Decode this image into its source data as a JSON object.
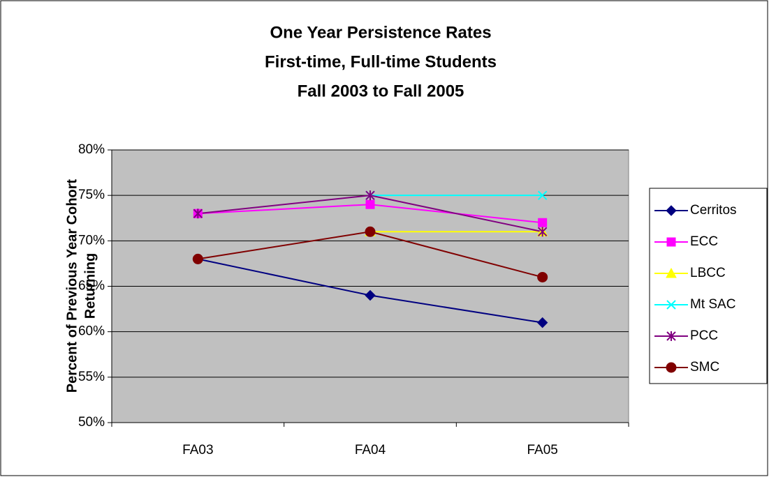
{
  "chart_data": {
    "type": "line",
    "title": [
      "One Year Persistence Rates",
      "First-time, Full-time Students",
      "Fall 2003 to Fall 2005"
    ],
    "ylabel": [
      "Percent of Previous Year Cohort",
      "Returning"
    ],
    "categories": [
      "FA03",
      "FA04",
      "FA05"
    ],
    "series": [
      {
        "name": "Cerritos",
        "color": "#000080",
        "marker": "diamond",
        "values": [
          68,
          64,
          61
        ]
      },
      {
        "name": "ECC",
        "color": "#ff00ff",
        "marker": "square",
        "values": [
          73,
          74,
          72
        ]
      },
      {
        "name": "LBCC",
        "color": "#ffff00",
        "marker": "triangle",
        "values": [
          null,
          71,
          71
        ]
      },
      {
        "name": "Mt SAC",
        "color": "#00ffff",
        "marker": "x",
        "values": [
          null,
          75,
          75
        ]
      },
      {
        "name": "PCC",
        "color": "#800080",
        "marker": "asterisk",
        "values": [
          73,
          75,
          71
        ]
      },
      {
        "name": "SMC",
        "color": "#800000",
        "marker": "circle",
        "values": [
          68,
          71,
          66
        ]
      }
    ],
    "ylim": [
      50,
      80
    ],
    "yticks": [
      {
        "value": 50,
        "label": "50%"
      },
      {
        "value": 55,
        "label": "55%"
      },
      {
        "value": 60,
        "label": "60%"
      },
      {
        "value": 65,
        "label": "65%"
      },
      {
        "value": 70,
        "label": "70%"
      },
      {
        "value": 75,
        "label": "75%"
      },
      {
        "value": 80,
        "label": "80%"
      }
    ],
    "grid": true,
    "legend": "right"
  }
}
